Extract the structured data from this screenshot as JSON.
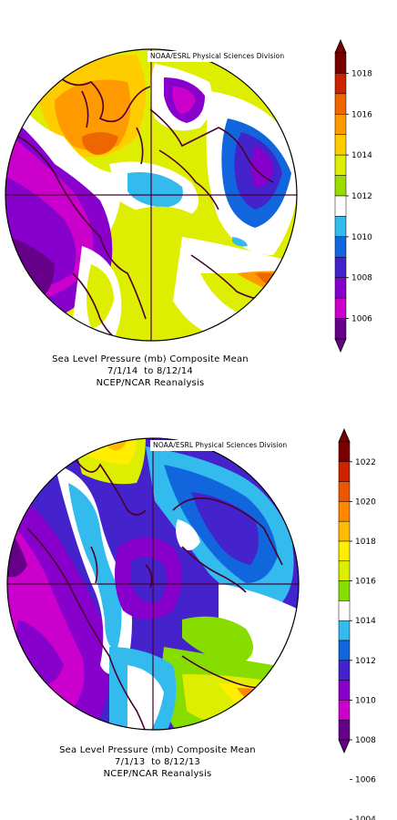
{
  "maps": [
    {
      "credit": "NOAA/ESRL Physical Sciences Division",
      "caption_title": "Sea Level Pressure (mb) Composite Mean",
      "caption_dates": "7/1/14  to 8/12/14",
      "caption_source": "NCEP/NCAR Reanalysis",
      "colorbar_ticks": [
        "1018",
        "1016",
        "1014",
        "1012",
        "1010",
        "1008",
        "1006"
      ],
      "colorbar_colors": [
        "#7a0000",
        "#cc2200",
        "#ee6600",
        "#ff9900",
        "#ffcc00",
        "#ddee00",
        "#99dd00",
        "#ffffff",
        "#33bbee",
        "#1166dd",
        "#4422cc",
        "#8800cc",
        "#cc00cc",
        "#660088"
      ]
    },
    {
      "credit": "NOAA/ESRL Physical Sciences Division",
      "caption_title": "Sea Level Pressure (mb) Composite Mean",
      "caption_dates": "7/1/13  to 8/12/13",
      "caption_source": "NCEP/NCAR Reanalysis",
      "colorbar_ticks": [
        "1022",
        "1020",
        "1018",
        "1016",
        "1014",
        "1012",
        "1010",
        "1008",
        "1006",
        "1004"
      ],
      "colorbar_colors": [
        "#7a0000",
        "#cc2200",
        "#ee5500",
        "#ff8800",
        "#ffbb00",
        "#ffee00",
        "#ddee00",
        "#88dd00",
        "#ffffff",
        "#33bbee",
        "#1166dd",
        "#4422cc",
        "#8800cc",
        "#cc00cc",
        "#660088"
      ]
    }
  ]
}
